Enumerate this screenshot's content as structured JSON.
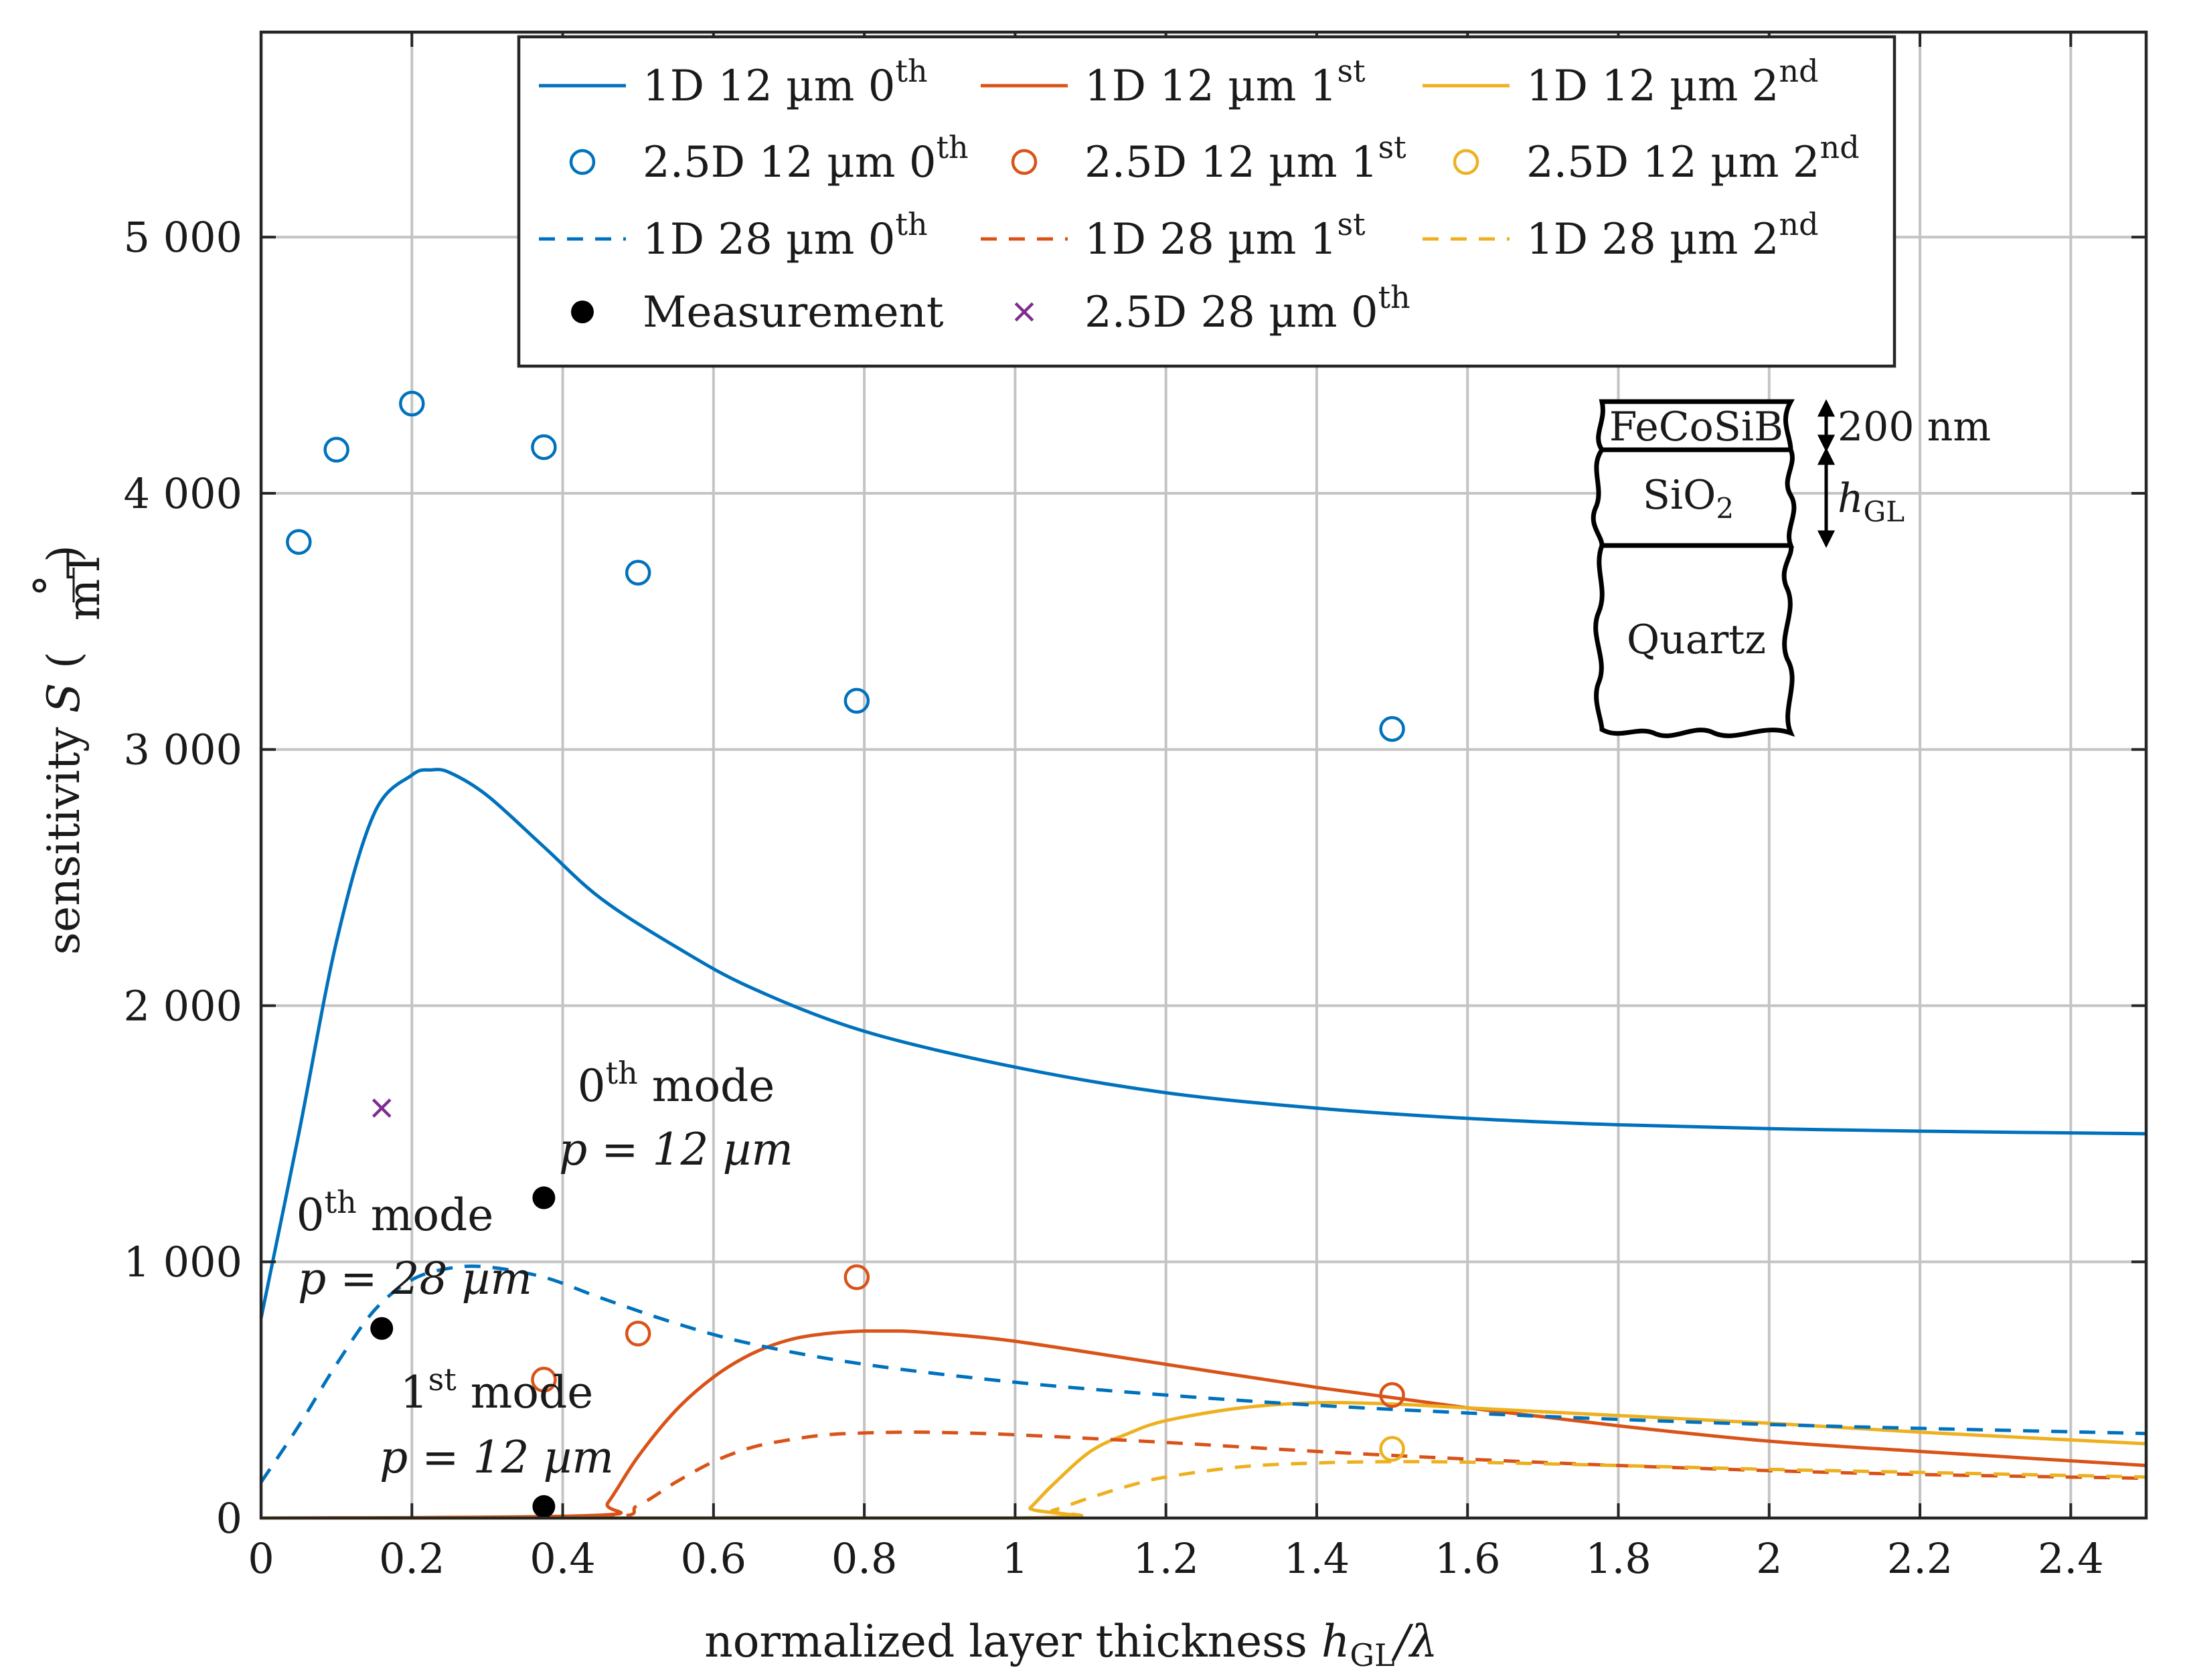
{
  "chart_data": {
    "type": "line",
    "title": "",
    "xlabel": "normalized layer thickness h_GL / λ",
    "ylabel": "sensitivity S (°/mT)",
    "xlabel_parts": {
      "main": "normalized layer thickness ",
      "var": "h",
      "sub": "GL",
      "rest": "/λ"
    },
    "ylabel_parts": {
      "main": "sensitivity ",
      "var": "S",
      "unit_num": "°",
      "unit_den": "mT"
    },
    "xlim": [
      0,
      2.5
    ],
    "ylim": [
      0,
      5800
    ],
    "grid": true,
    "x_ticks": [
      0,
      0.2,
      0.4,
      0.6,
      0.8,
      1,
      1.2,
      1.4,
      1.6,
      1.8,
      2,
      2.2,
      2.4
    ],
    "x_tick_labels": [
      "0",
      "0.2",
      "0.4",
      "0.6",
      "0.8",
      "1",
      "1.2",
      "1.4",
      "1.6",
      "1.8",
      "2",
      "2.2",
      "2.4"
    ],
    "y_ticks": [
      0,
      1000,
      2000,
      3000,
      4000,
      5000
    ],
    "y_tick_labels": [
      "0",
      "1 000",
      "2 000",
      "3 000",
      "4 000",
      "5 000"
    ],
    "colors": {
      "blue": "#0072bd",
      "orange": "#d95319",
      "yellow": "#edb120",
      "purple": "#7e2f8e",
      "black": "#000000"
    },
    "legend_position": "top",
    "series": [
      {
        "name": "1D 12 µm 0th",
        "base": "1D 12 µm 0",
        "sup": "th",
        "color": "#0072bd",
        "style": "solid",
        "x": [
          0,
          0.05,
          0.1,
          0.15,
          0.2,
          0.225,
          0.25,
          0.3,
          0.375,
          0.45,
          0.55,
          0.65,
          0.8,
          1.0,
          1.2,
          1.4,
          1.6,
          1.8,
          2.0,
          2.2,
          2.5
        ],
        "y": [
          780,
          1500,
          2250,
          2750,
          2900,
          2920,
          2910,
          2820,
          2620,
          2420,
          2230,
          2070,
          1900,
          1760,
          1660,
          1600,
          1560,
          1535,
          1520,
          1510,
          1500
        ]
      },
      {
        "name": "1D 12 µm 1st",
        "base": "1D 12 µm 1",
        "sup": "st",
        "color": "#d95319",
        "style": "solid",
        "x": [
          0,
          0.44,
          0.46,
          0.5,
          0.55,
          0.6,
          0.65,
          0.7,
          0.75,
          0.8,
          0.85,
          0.9,
          1.0,
          1.2,
          1.4,
          1.6,
          1.8,
          2.0,
          2.2,
          2.5
        ],
        "y": [
          0,
          10,
          60,
          240,
          420,
          550,
          640,
          695,
          720,
          730,
          730,
          720,
          690,
          600,
          510,
          430,
          360,
          300,
          260,
          205
        ]
      },
      {
        "name": "1D 12 µm 2nd",
        "base": "1D 12 µm 2",
        "sup": "nd",
        "color": "#edb120",
        "style": "solid",
        "x": [
          0,
          1.0,
          1.02,
          1.05,
          1.1,
          1.15,
          1.2,
          1.3,
          1.4,
          1.5,
          1.6,
          1.8,
          2.0,
          2.2,
          2.5
        ],
        "y": [
          0,
          0,
          40,
          130,
          260,
          330,
          380,
          430,
          450,
          445,
          430,
          400,
          370,
          335,
          290
        ]
      },
      {
        "name": "1D 28 µm 0th",
        "base": "1D 28 µm 0",
        "sup": "th",
        "color": "#0072bd",
        "style": "dashed",
        "x": [
          0,
          0.05,
          0.1,
          0.15,
          0.2,
          0.25,
          0.3,
          0.375,
          0.45,
          0.55,
          0.65,
          0.8,
          1.0,
          1.2,
          1.4,
          1.6,
          1.8,
          2.0,
          2.2,
          2.5
        ],
        "y": [
          140,
          360,
          600,
          810,
          930,
          975,
          980,
          940,
          860,
          760,
          680,
          600,
          530,
          480,
          440,
          410,
          385,
          365,
          350,
          330
        ]
      },
      {
        "name": "1D 28 µm 1st",
        "base": "1D 28 µm 1",
        "sup": "st",
        "color": "#d95319",
        "style": "dashed",
        "x": [
          0,
          0.44,
          0.5,
          0.55,
          0.6,
          0.65,
          0.7,
          0.75,
          0.8,
          0.85,
          0.9,
          1.0,
          1.2,
          1.4,
          1.6,
          1.8,
          2.0,
          2.2,
          2.5
        ],
        "y": [
          0,
          0,
          50,
          140,
          220,
          275,
          305,
          325,
          332,
          335,
          334,
          325,
          295,
          260,
          230,
          205,
          185,
          170,
          155
        ]
      },
      {
        "name": "1D 28 µm 2nd",
        "base": "1D 28 µm 2",
        "sup": "nd",
        "color": "#edb120",
        "style": "dashed",
        "x": [
          0,
          1.0,
          1.05,
          1.1,
          1.15,
          1.2,
          1.3,
          1.4,
          1.5,
          1.6,
          1.8,
          2.0,
          2.2,
          2.5
        ],
        "y": [
          0,
          0,
          30,
          80,
          125,
          160,
          200,
          215,
          220,
          218,
          205,
          190,
          178,
          160
        ]
      },
      {
        "name": "2.5D 12 µm 0th",
        "base": "2.5D 12 µm 0",
        "sup": "th",
        "color": "#0072bd",
        "style": "circle",
        "x": [
          0.05,
          0.1,
          0.2,
          0.375,
          0.5,
          0.79,
          1.5
        ],
        "y": [
          3810,
          4170,
          4350,
          4180,
          3690,
          3190,
          3080
        ]
      },
      {
        "name": "2.5D 12 µm 1st",
        "base": "2.5D 12 µm 1",
        "sup": "st",
        "color": "#d95319",
        "style": "circle",
        "x": [
          0.375,
          0.5,
          0.79,
          1.5
        ],
        "y": [
          540,
          720,
          940,
          480
        ]
      },
      {
        "name": "2.5D 12 µm 2nd",
        "base": "2.5D 12 µm 2",
        "sup": "nd",
        "color": "#edb120",
        "style": "circle",
        "x": [
          1.5
        ],
        "y": [
          270
        ]
      },
      {
        "name": "Measurement",
        "base": "Measurement",
        "sup": "",
        "color": "#000000",
        "style": "dot",
        "x": [
          0.16,
          0.375,
          0.375
        ],
        "y": [
          740,
          1250,
          45
        ]
      },
      {
        "name": "2.5D 28 µm 0th",
        "base": "2.5D 28 µm 0",
        "sup": "th",
        "color": "#7e2f8e",
        "style": "cross",
        "x": [
          0.16
        ],
        "y": [
          1600
        ]
      }
    ],
    "legend_order": [
      0,
      1,
      2,
      6,
      7,
      8,
      3,
      4,
      5,
      9,
      10
    ],
    "annotations": [
      {
        "id": "a0",
        "line1_sup": "th",
        "line1_pre": "0",
        "line1_post": " mode",
        "line2": "p = 12 µm"
      },
      {
        "id": "a1",
        "line1_sup": "th",
        "line1_pre": "0",
        "line1_post": " mode",
        "line2": "p = 28 µm"
      },
      {
        "id": "a2",
        "line1_sup": "st",
        "line1_pre": "1",
        "line1_post": " mode",
        "line2": "p = 12 µm"
      }
    ],
    "inset": {
      "layers": [
        "FeCoSiB",
        "SiO",
        "Quartz"
      ],
      "sio_sub": "2",
      "thickness_label": "200 nm",
      "hgl_var": "h",
      "hgl_sub": "GL"
    }
  }
}
